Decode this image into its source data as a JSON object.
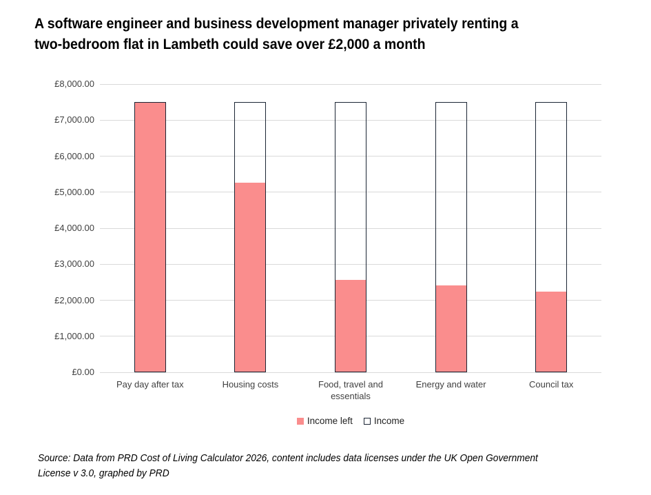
{
  "title": {
    "lines": [
      "A software engineer and business development manager privately renting a",
      "two-bedroom flat in Lambeth could save over £2,000 a month"
    ]
  },
  "chart_data": {
    "type": "bar",
    "subtype": "overlapped-stacked-look",
    "title": "A software engineer and business development manager privately renting a two-bedroom flat in Lambeth could save over £2,000 a month",
    "categories": [
      "Pay day after tax",
      "Housing costs",
      "Food, travel and essentials",
      "Energy and water",
      "Council tax"
    ],
    "series": [
      {
        "name": "Income left",
        "values": [
          7500,
          5265,
          2565,
          2415,
          2235
        ],
        "fill": "#FA8D8D",
        "outline": "#1A2433"
      },
      {
        "name": "Income",
        "values": [
          7500,
          7500,
          7500,
          7500,
          7500
        ],
        "fill": "none",
        "outline": "#1A2433"
      }
    ],
    "legend": [
      "Income left",
      "Income"
    ],
    "legend_position": "bottom",
    "xlabel": "",
    "ylabel": "",
    "ylim": [
      0,
      8000
    ],
    "ytick_step": 1000,
    "ytick_labels_top_to_bottom": [
      "£8,000.00",
      "£7,000.00",
      "£6,000.00",
      "£5,000.00",
      "£4,000.00",
      "£3,000.00",
      "£2,000.00",
      "£1,000.00",
      "£0.00"
    ],
    "grid": true
  },
  "footer": {
    "source_lines": [
      "Source: Data from PRD Cost of Living Calculator 2026, content includes data licenses under the UK Open Government",
      "License v 3.0, graphed by PRD"
    ]
  },
  "colors": {
    "income_left_fill": "#FA8D8D",
    "income_outline": "#1A2433",
    "gridline": "#D9D9D9",
    "axis_text": "#3F3F3F",
    "background": "#FFFFFF"
  }
}
